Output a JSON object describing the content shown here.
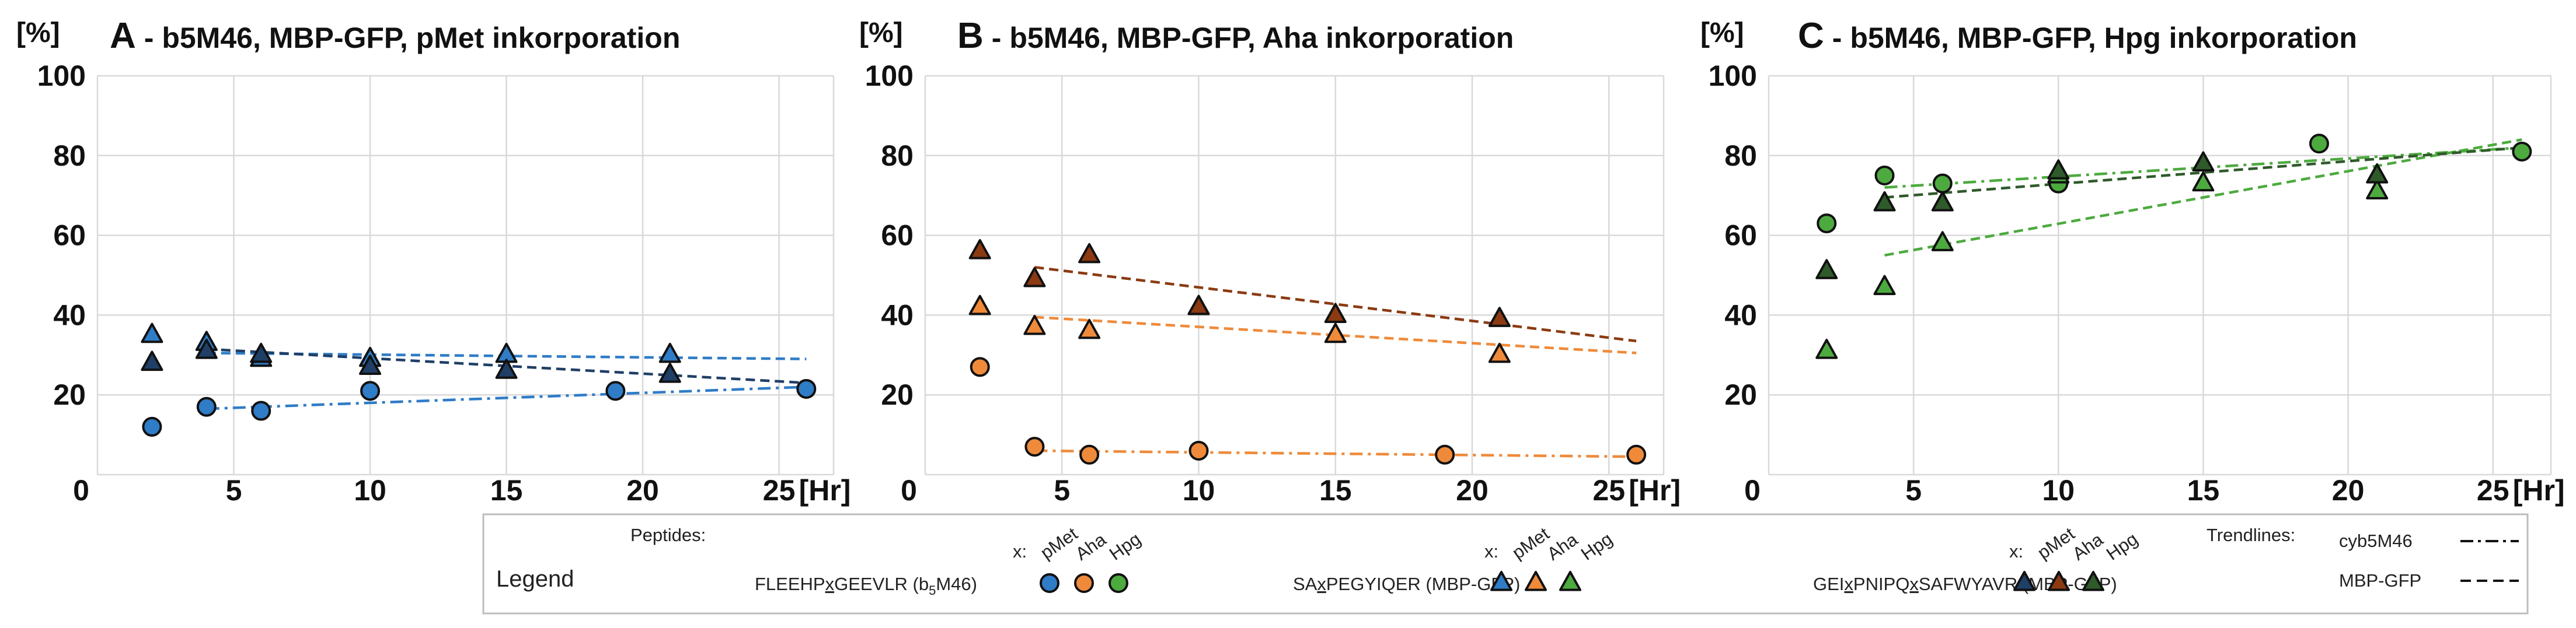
{
  "colors": {
    "blue": "#2f7cc7",
    "orange": "#ef8a3a",
    "green": "#4daa3f",
    "navy": "#1f3f66",
    "brown": "#8b3a12",
    "darkgreen": "#2f5a2a",
    "grid": "#d9d9d9"
  },
  "chart_data": [
    {
      "type": "scatter",
      "panel": "A",
      "title_letter": "A",
      "title_text": "- b5M46, MBP-GFP, pMet inkorporation",
      "y_unit": "[%]",
      "x_unit": "[Hr]",
      "xlim": [
        0,
        27
      ],
      "ylim": [
        0,
        100
      ],
      "xticks": [
        "0",
        "5",
        "10",
        "15",
        "20",
        "25"
      ],
      "yticks": [
        "20",
        "40",
        "60",
        "80",
        "100"
      ],
      "series": [
        {
          "name": "FLEEHPxGEEVLR (b5M46) pMet",
          "marker": "circle",
          "color": "blue",
          "points": [
            [
              2,
              12
            ],
            [
              4,
              17
            ],
            [
              6,
              16
            ],
            [
              10,
              21
            ],
            [
              19,
              21
            ],
            [
              26,
              21.5
            ]
          ]
        },
        {
          "name": "SAxPEGYIQER (MBP-GFP) pMet",
          "marker": "triangle",
          "color": "blue",
          "points": [
            [
              2,
              35
            ],
            [
              4,
              33
            ],
            [
              6,
              29
            ],
            [
              10,
              29
            ],
            [
              15,
              30
            ],
            [
              21,
              30
            ]
          ]
        },
        {
          "name": "GEIxPNIPQxSAFWYAVR (MBP-GFP) pMet",
          "marker": "triangle",
          "color": "navy",
          "points": [
            [
              2,
              28
            ],
            [
              4,
              31
            ],
            [
              6,
              30
            ],
            [
              10,
              27
            ],
            [
              15,
              26
            ],
            [
              21,
              25
            ]
          ]
        }
      ],
      "trendlines": [
        {
          "series": "cyb5M46",
          "style": "dashdot",
          "color": "blue",
          "x": [
            4,
            26
          ],
          "y": [
            16.5,
            22
          ]
        },
        {
          "series": "MBP-GFP",
          "style": "dashed",
          "color": "blue",
          "x": [
            4,
            26
          ],
          "y": [
            30.5,
            29
          ]
        },
        {
          "series": "MBP-GFP",
          "style": "dashed",
          "color": "navy",
          "x": [
            4,
            26
          ],
          "y": [
            31.5,
            23
          ]
        }
      ]
    },
    {
      "type": "scatter",
      "panel": "B",
      "title_letter": "B",
      "title_text": "- b5M46, MBP-GFP, Aha inkorporation",
      "y_unit": "[%]",
      "x_unit": "[Hr]",
      "xlim": [
        0,
        27
      ],
      "ylim": [
        0,
        100
      ],
      "xticks": [
        "0",
        "5",
        "10",
        "15",
        "20",
        "25"
      ],
      "yticks": [
        "20",
        "40",
        "60",
        "80",
        "100"
      ],
      "series": [
        {
          "name": "FLEEHPxGEEVLR (b5M46) Aha",
          "marker": "circle",
          "color": "orange",
          "points": [
            [
              2,
              27
            ],
            [
              4,
              7
            ],
            [
              6,
              5
            ],
            [
              10,
              6
            ],
            [
              19,
              5
            ],
            [
              26,
              5
            ]
          ]
        },
        {
          "name": "SAxPEGYIQER (MBP-GFP) Aha",
          "marker": "triangle",
          "color": "orange",
          "points": [
            [
              2,
              42
            ],
            [
              4,
              37
            ],
            [
              6,
              36
            ],
            [
              10,
              42
            ],
            [
              15,
              35
            ],
            [
              21,
              30
            ]
          ]
        },
        {
          "name": "GEIxPNIPQxSAFWYAVR (MBP-GFP) Aha",
          "marker": "triangle",
          "color": "brown",
          "points": [
            [
              2,
              56
            ],
            [
              4,
              49
            ],
            [
              6,
              55
            ],
            [
              10,
              42
            ],
            [
              15,
              40
            ],
            [
              21,
              39
            ]
          ]
        }
      ],
      "trendlines": [
        {
          "series": "cyb5M46",
          "style": "dashdot",
          "color": "orange",
          "x": [
            4,
            26
          ],
          "y": [
            6,
            4.5
          ]
        },
        {
          "series": "MBP-GFP",
          "style": "dashed",
          "color": "orange",
          "x": [
            4,
            26
          ],
          "y": [
            39.5,
            30.5
          ]
        },
        {
          "series": "MBP-GFP",
          "style": "dashed",
          "color": "brown",
          "x": [
            4,
            26
          ],
          "y": [
            52,
            33.5
          ]
        }
      ]
    },
    {
      "type": "scatter",
      "panel": "C",
      "title_letter": "C",
      "title_text": "- b5M46, MBP-GFP, Hpg inkorporation",
      "y_unit": "[%]",
      "x_unit": "[Hr]",
      "xlim": [
        0,
        27
      ],
      "ylim": [
        0,
        100
      ],
      "xticks": [
        "0",
        "5",
        "10",
        "15",
        "20",
        "25"
      ],
      "yticks": [
        "20",
        "40",
        "60",
        "80",
        "100"
      ],
      "series": [
        {
          "name": "FLEEHPxGEEVLR (b5M46) Hpg",
          "marker": "circle",
          "color": "green",
          "points": [
            [
              2,
              63
            ],
            [
              4,
              75
            ],
            [
              6,
              73
            ],
            [
              10,
              73
            ],
            [
              19,
              83
            ],
            [
              26,
              81
            ]
          ]
        },
        {
          "name": "SAxPEGYIQER (MBP-GFP) Hpg",
          "marker": "triangle",
          "color": "green",
          "points": [
            [
              2,
              31
            ],
            [
              4,
              47
            ],
            [
              6,
              58
            ],
            [
              10,
              75
            ],
            [
              15,
              73
            ],
            [
              21,
              71
            ]
          ]
        },
        {
          "name": "GEIxPNIPQxSAFWYAVR (MBP-GFP) Hpg",
          "marker": "triangle",
          "color": "darkgreen",
          "points": [
            [
              2,
              51
            ],
            [
              4,
              68
            ],
            [
              6,
              68
            ],
            [
              10,
              76
            ],
            [
              15,
              78
            ],
            [
              21,
              75
            ]
          ]
        }
      ],
      "trendlines": [
        {
          "series": "cyb5M46",
          "style": "dashdot",
          "color": "green",
          "x": [
            4,
            26
          ],
          "y": [
            72,
            82
          ]
        },
        {
          "series": "MBP-GFP",
          "style": "dashed",
          "color": "green",
          "x": [
            4,
            26
          ],
          "y": [
            55,
            84
          ]
        },
        {
          "series": "MBP-GFP",
          "style": "dashed",
          "color": "darkgreen",
          "x": [
            4,
            26
          ],
          "y": [
            69.5,
            82
          ]
        }
      ]
    }
  ],
  "legend": {
    "title": "Legend",
    "peptides_label": "Peptides:",
    "x_label": "x:",
    "aa": [
      "pMet",
      "Aha",
      "Hpg"
    ],
    "groups": [
      {
        "peptide_pre": "FLEEHP",
        "x": "x",
        "peptide_post": "GEEVLR (b",
        "sub": "5",
        "tail": "M46)",
        "marker": "circle",
        "colors": [
          "blue",
          "orange",
          "green"
        ]
      },
      {
        "peptide_pre": "SA",
        "x": "x",
        "peptide_post": "PEGYIQER (MBP-GFP)",
        "sub": "",
        "tail": "",
        "marker": "triangle",
        "colors": [
          "blue",
          "orange",
          "green"
        ]
      },
      {
        "peptide_pre": "GEI",
        "x": "x",
        "peptide_post": "PNIPQ",
        "x2": "x",
        "peptide_post2": "SAFWYAVR (MBP-GFP)",
        "sub": "",
        "tail": "",
        "marker": "triangle",
        "colors": [
          "navy",
          "brown",
          "darkgreen"
        ]
      }
    ],
    "trendlines_label": "Trendlines:",
    "trend_items": [
      {
        "label": "cyb5M46",
        "style": "dashdot"
      },
      {
        "label": "MBP-GFP",
        "style": "dashed"
      }
    ]
  }
}
